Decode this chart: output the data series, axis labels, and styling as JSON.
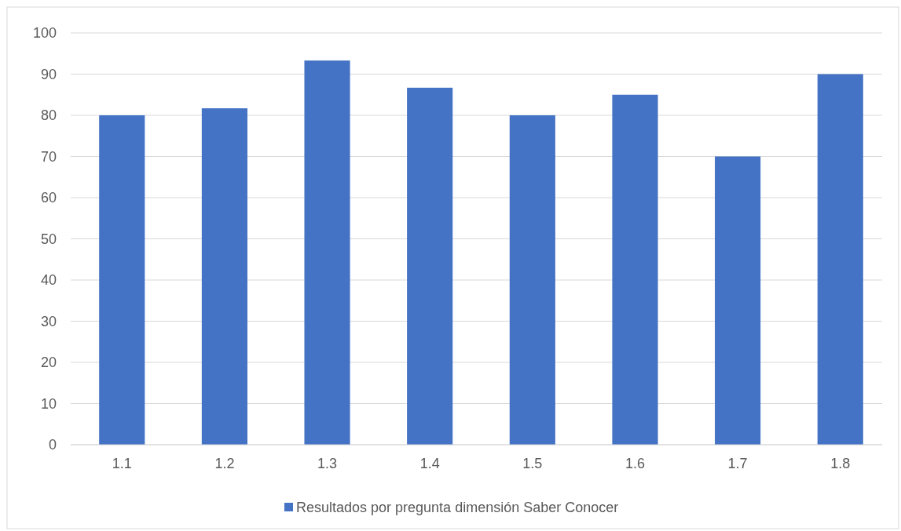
{
  "chart_data": {
    "type": "bar",
    "categories": [
      "1.1",
      "1.2",
      "1.3",
      "1.4",
      "1.5",
      "1.6",
      "1.7",
      "1.8"
    ],
    "series": [
      {
        "name": "Resultados por pregunta dimensión Saber Conocer",
        "color": "#4472c4",
        "values": [
          80,
          81.7,
          93.3,
          86.7,
          80,
          85,
          70,
          90
        ]
      }
    ],
    "ylim": [
      0,
      100
    ],
    "yticks": [
      0,
      10,
      20,
      30,
      40,
      50,
      60,
      70,
      80,
      90,
      100
    ],
    "grid": "y",
    "legend": "bottom"
  }
}
